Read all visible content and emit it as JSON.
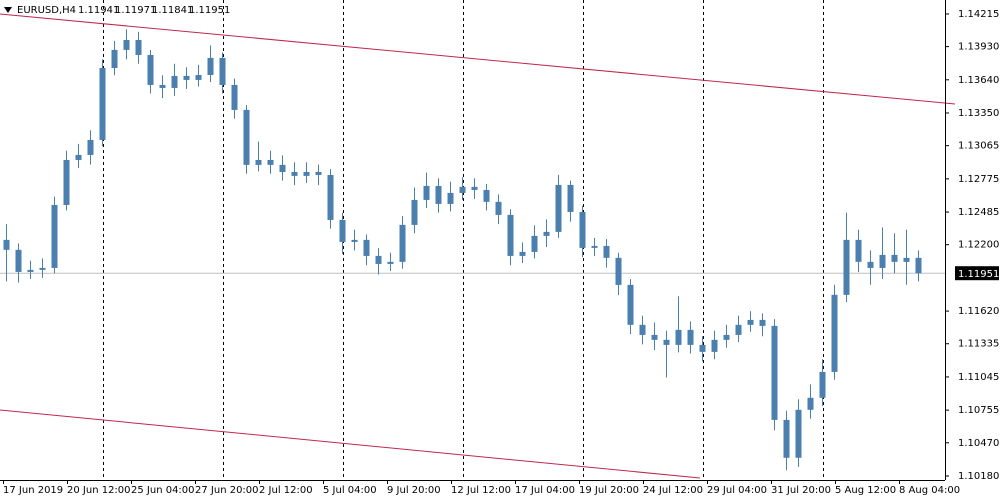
{
  "chart_data": {
    "type": "candlestick",
    "header": {
      "symbol": "EURUSD,H4",
      "open": 1.11941,
      "high": 1.11971,
      "low": 1.11841,
      "close": 1.11951
    },
    "color": "#4a7fae",
    "current_price": 1.11951,
    "ylim": [
      1.10145,
      1.14337
    ],
    "yticks": [
      1.14215,
      {
        "value": 1.1393,
        "label": "1.13930"
      },
      {
        "value": 1.1364,
        "label": "1.13640"
      },
      {
        "value": 1.1335,
        "label": "1.13350"
      },
      1.13065,
      1.12775,
      1.12485,
      {
        "value": 1.122,
        "label": "1.12200"
      },
      {
        "value": 1.1162,
        "label": "1.11620"
      },
      1.11335,
      1.11045,
      1.10755,
      {
        "value": 1.1047,
        "label": "1.10470"
      },
      {
        "value": 1.1018,
        "label": "1.10180"
      }
    ],
    "xlabels": [
      "17 Jun 2019",
      "20 Jun 12:00",
      "25 Jun 04:00",
      "27 Jun 20:00",
      "2 Jul 12:00",
      "5 Jul 04:00",
      "9 Jul 20:00",
      "12 Jul 12:00",
      "17 Jul 04:00",
      "19 Jul 20:00",
      "24 Jul 12:00",
      "29 Jul 04:00",
      "31 Jul 20:00",
      "5 Aug 12:00",
      "8 Aug 04:00"
    ],
    "open": [
      1.12242,
      1.12155,
      1.11962,
      1.1198,
      1.11997,
      1.12547,
      1.1294,
      1.12984,
      1.13115,
      1.13743,
      1.13901,
      1.13988,
      1.13857,
      1.13595,
      1.13569,
      1.13674,
      1.13639,
      1.13682,
      1.13831,
      1.13595,
      1.13377,
      1.12897,
      1.1294,
      1.12897,
      1.12835,
      1.12801,
      1.12835,
      1.12809,
      1.12416,
      1.12224,
      1.12242,
      1.12102,
      1.12032,
      1.1205,
      1.12373,
      1.12591,
      1.12713,
      1.12556,
      1.12652,
      1.12705,
      1.12678,
      1.12574,
      1.1246,
      1.12102,
      1.12137,
      1.12277,
      1.12312,
      1.12722,
      1.12486,
      1.12172,
      1.12189,
      1.12085,
      1.11849,
      1.115,
      1.11412,
      1.11369,
      1.11325,
      1.11456,
      1.11325,
      1.11264,
      1.11369,
      1.11412,
      1.115,
      1.11543,
      1.11491,
      1.1067,
      1.10339,
      1.10758,
      1.10863,
      1.11089,
      1.11762,
      1.12242,
      1.1205,
      1.11997,
      1.12111,
      1.1205,
      1.12085
    ],
    "high": [
      1.1238,
      1.1221,
      1.1206,
      1.1208,
      1.1262,
      1.1302,
      1.1308,
      1.132,
      1.1382,
      1.1398,
      1.1408,
      1.1406,
      1.139,
      1.1368,
      1.1378,
      1.1375,
      1.1377,
      1.1394,
      1.1388,
      1.1365,
      1.1342,
      1.131,
      1.1302,
      1.1298,
      1.1292,
      1.1292,
      1.129,
      1.1286,
      1.1248,
      1.1233,
      1.1229,
      1.1217,
      1.1213,
      1.1245,
      1.127,
      1.1283,
      1.1278,
      1.1275,
      1.1279,
      1.1278,
      1.1273,
      1.1264,
      1.1251,
      1.1222,
      1.1237,
      1.1242,
      1.1281,
      1.1276,
      1.1254,
      1.1226,
      1.1225,
      1.1213,
      1.119,
      1.1158,
      1.1152,
      1.1145,
      1.1175,
      1.1153,
      1.114,
      1.1145,
      1.115,
      1.1158,
      1.1162,
      1.116,
      1.1155,
      1.1075,
      1.1085,
      1.1098,
      1.112,
      1.1185,
      1.1248,
      1.1233,
      1.1215,
      1.1235,
      1.123,
      1.1233,
      1.1215
    ],
    "low": [
      1.1188,
      1.1187,
      1.119,
      1.1191,
      1.1195,
      1.125,
      1.1287,
      1.129,
      1.1306,
      1.1368,
      1.1382,
      1.1378,
      1.1352,
      1.1348,
      1.135,
      1.1356,
      1.1358,
      1.1362,
      1.1352,
      1.133,
      1.1282,
      1.1284,
      1.1282,
      1.1276,
      1.1272,
      1.1274,
      1.1272,
      1.1234,
      1.1212,
      1.1215,
      1.1202,
      1.1194,
      1.1197,
      1.1199,
      1.123,
      1.1252,
      1.1248,
      1.1249,
      1.1259,
      1.126,
      1.125,
      1.1238,
      1.1202,
      1.1204,
      1.1208,
      1.1218,
      1.1226,
      1.124,
      1.1209,
      1.121,
      1.12,
      1.1176,
      1.1142,
      1.1133,
      1.1128,
      1.1104,
      1.1126,
      1.1125,
      1.1118,
      1.112,
      1.113,
      1.1135,
      1.1144,
      1.114,
      1.1058,
      1.1023,
      1.1026,
      1.1068,
      1.1079,
      1.1102,
      1.117,
      1.1196,
      1.1185,
      1.119,
      1.1195,
      1.1185,
      1.1188
    ],
    "close": [
      1.12155,
      1.11962,
      1.1198,
      1.11997,
      1.12547,
      1.1294,
      1.12984,
      1.13115,
      1.13743,
      1.13901,
      1.13988,
      1.13857,
      1.13595,
      1.13569,
      1.13674,
      1.13639,
      1.13682,
      1.13831,
      1.13595,
      1.13377,
      1.12897,
      1.1294,
      1.12897,
      1.12835,
      1.12801,
      1.12835,
      1.12809,
      1.12416,
      1.12224,
      1.12242,
      1.12102,
      1.12032,
      1.1205,
      1.12373,
      1.12591,
      1.12713,
      1.12556,
      1.12652,
      1.12705,
      1.12678,
      1.12574,
      1.1246,
      1.12102,
      1.12137,
      1.12277,
      1.12312,
      1.12722,
      1.12486,
      1.12172,
      1.12189,
      1.12085,
      1.11849,
      1.115,
      1.11412,
      1.11369,
      1.11325,
      1.11456,
      1.11325,
      1.11264,
      1.11369,
      1.11412,
      1.115,
      1.11543,
      1.11491,
      1.1067,
      1.10339,
      1.10758,
      1.10863,
      1.11089,
      1.11762,
      1.12242,
      1.1205,
      1.11997,
      1.12111,
      1.1205,
      1.12085,
      1.11951
    ]
  }
}
